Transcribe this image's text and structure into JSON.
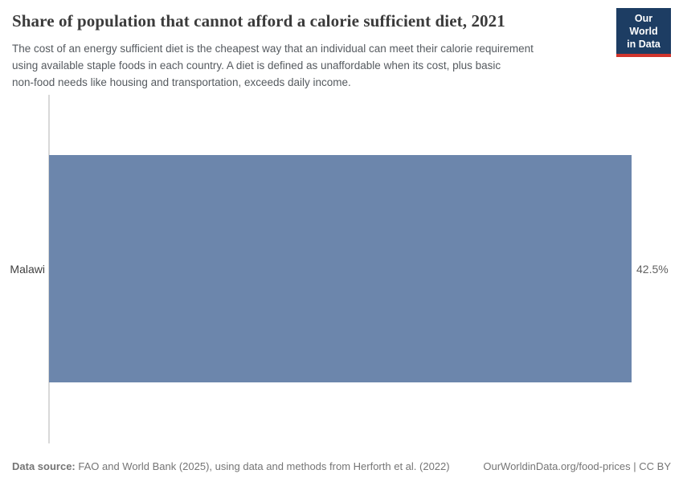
{
  "header": {
    "title": "Share of population that cannot afford a calorie sufficient diet, 2021",
    "subtitle_lines": [
      "The cost of an energy sufficient diet is the cheapest way that an individual can meet their calorie requirement",
      "using available staple foods in each country. A diet is defined as unaffordable when its cost, plus basic",
      "non-food needs like housing and transportation, exceeds daily income."
    ],
    "logo": {
      "line1": "Our World",
      "line2": "in Data",
      "background_color": "#1d3d63",
      "accent_color": "#d0342c"
    }
  },
  "chart": {
    "entity_label": "Malawi",
    "value_label": "42.5%",
    "bar_color": "#6c86ac",
    "axis_line_color": "#d9d9d9"
  },
  "chart_data": {
    "type": "bar",
    "orientation": "horizontal",
    "title": "Share of population that cannot afford a calorie sufficient diet, 2021",
    "categories": [
      "Malawi"
    ],
    "values": [
      42.5
    ],
    "value_labels": [
      "42.5%"
    ],
    "unit": "%",
    "year": "2021",
    "xlim": [
      0,
      42.5
    ],
    "grid": false,
    "legend": false,
    "bar_color": "#6c86ac"
  },
  "footer": {
    "datasource_label": "Data source:",
    "datasource_text": " FAO and World Bank (2025), using data and methods from Herforth et al. (2022)",
    "link_text": "OurWorldinData.org/food-prices | CC BY"
  }
}
